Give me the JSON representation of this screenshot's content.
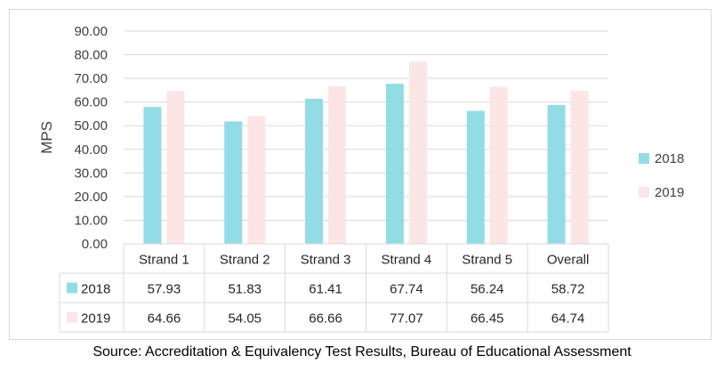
{
  "chart_data": {
    "type": "bar",
    "ylabel": "MPS",
    "ylim": [
      0,
      90
    ],
    "y_ticks": [
      "0.00",
      "10.00",
      "20.00",
      "30.00",
      "40.00",
      "50.00",
      "60.00",
      "70.00",
      "80.00",
      "90.00"
    ],
    "grid": true,
    "legend_position": "right",
    "categories": [
      "Strand 1",
      "Strand 2",
      "Strand 3",
      "Strand 4",
      "Strand 5",
      "Overall"
    ],
    "series": [
      {
        "name": "2018",
        "color": "#92dce6",
        "values": [
          57.93,
          51.83,
          61.41,
          67.74,
          56.24,
          58.72
        ],
        "labels": [
          "57.93",
          "51.83",
          "61.41",
          "67.74",
          "56.24",
          "58.72"
        ]
      },
      {
        "name": "2019",
        "color": "#fbe5e5",
        "values": [
          64.66,
          54.05,
          66.66,
          77.07,
          66.45,
          64.74
        ],
        "labels": [
          "64.66",
          "54.05",
          "66.66",
          "77.07",
          "66.45",
          "64.74"
        ]
      }
    ],
    "data_table": true
  },
  "source": "Source: Accreditation & Equivalency Test Results, Bureau of Educational Assessment"
}
